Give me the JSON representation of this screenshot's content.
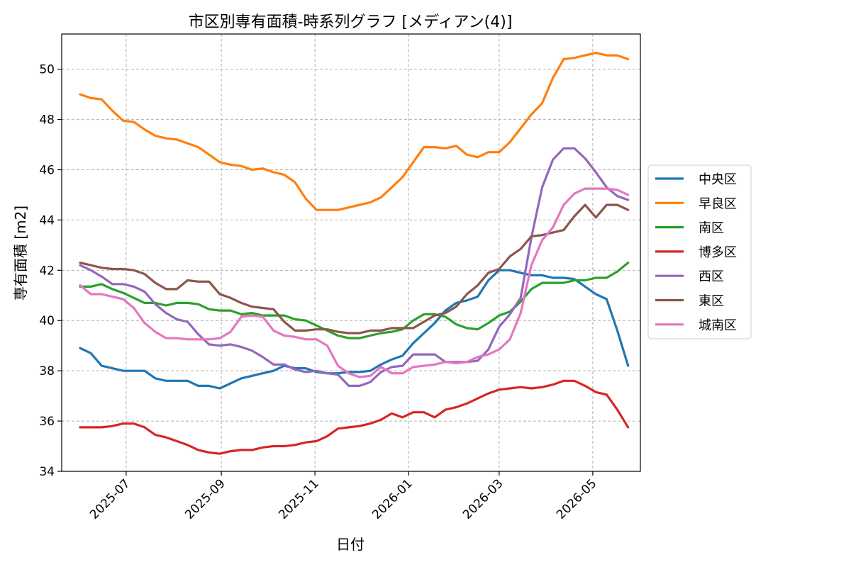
{
  "chart_data": {
    "type": "line",
    "title": "市区別専有面積-時系列グラフ [メディアン(4)]",
    "xlabel": "日付",
    "ylabel": "専有面積 [m2]",
    "x_tick_labels": [
      "2025-07",
      "2025-09",
      "2025-11",
      "2026-01",
      "2026-03",
      "2026-05"
    ],
    "y_tick_labels": [
      "34",
      "36",
      "38",
      "40",
      "42",
      "44",
      "46",
      "48",
      "50"
    ],
    "ylim": [
      34,
      51.4
    ],
    "xlim": [
      "2025-05-20",
      "2026-06-01"
    ],
    "grid": true,
    "legend_position": "right",
    "x": [
      "2025-06-01",
      "2025-06-08",
      "2025-06-15",
      "2025-06-22",
      "2025-06-29",
      "2025-07-06",
      "2025-07-13",
      "2025-07-20",
      "2025-07-27",
      "2025-08-03",
      "2025-08-10",
      "2025-08-17",
      "2025-08-24",
      "2025-08-31",
      "2025-09-07",
      "2025-09-14",
      "2025-09-21",
      "2025-09-28",
      "2025-10-05",
      "2025-10-12",
      "2025-10-19",
      "2025-10-26",
      "2025-11-02",
      "2025-11-09",
      "2025-11-16",
      "2025-11-23",
      "2025-11-30",
      "2025-12-07",
      "2025-12-14",
      "2025-12-21",
      "2025-12-28",
      "2026-01-04",
      "2026-01-11",
      "2026-01-18",
      "2026-01-25",
      "2026-02-01",
      "2026-02-08",
      "2026-02-15",
      "2026-02-22",
      "2026-03-01",
      "2026-03-08",
      "2026-03-15",
      "2026-03-22",
      "2026-03-29",
      "2026-04-05",
      "2026-04-12",
      "2026-04-19",
      "2026-04-26",
      "2026-05-03",
      "2026-05-10",
      "2026-05-17",
      "2026-05-24"
    ],
    "series": [
      {
        "name": "中央区",
        "color": "#1f77b4",
        "values": [
          38.9,
          38.7,
          38.2,
          38.1,
          38.0,
          38.0,
          38.0,
          37.7,
          37.6,
          37.6,
          37.6,
          37.4,
          37.4,
          37.3,
          37.5,
          37.7,
          37.8,
          37.9,
          38.0,
          38.2,
          38.1,
          38.1,
          37.95,
          37.9,
          37.9,
          37.95,
          37.95,
          38.0,
          38.25,
          38.45,
          38.6,
          39.1,
          39.5,
          39.9,
          40.4,
          40.7,
          40.8,
          40.95,
          41.6,
          42.0,
          42.0,
          41.9,
          41.8,
          41.8,
          41.7,
          41.7,
          41.65,
          41.35,
          41.05,
          40.85,
          39.6,
          38.2
        ]
      },
      {
        "name": "早良区",
        "color": "#ff7f0e",
        "values": [
          49.0,
          48.85,
          48.8,
          48.35,
          47.95,
          47.9,
          47.6,
          47.35,
          47.25,
          47.2,
          47.05,
          46.9,
          46.6,
          46.3,
          46.2,
          46.15,
          46.0,
          46.05,
          45.9,
          45.8,
          45.5,
          44.85,
          44.4,
          44.4,
          44.4,
          44.5,
          44.6,
          44.7,
          44.9,
          45.3,
          45.7,
          46.3,
          46.9,
          46.9,
          46.85,
          46.95,
          46.6,
          46.5,
          46.7,
          46.7,
          47.1,
          47.65,
          48.2,
          48.65,
          49.65,
          50.4,
          50.45,
          50.55,
          50.65,
          50.55,
          50.55,
          50.4
        ]
      },
      {
        "name": "南区",
        "color": "#2ca02c",
        "values": [
          41.35,
          41.35,
          41.45,
          41.25,
          41.1,
          40.9,
          40.7,
          40.7,
          40.6,
          40.7,
          40.7,
          40.65,
          40.45,
          40.4,
          40.4,
          40.25,
          40.3,
          40.2,
          40.2,
          40.2,
          40.05,
          40.0,
          39.8,
          39.6,
          39.4,
          39.3,
          39.3,
          39.4,
          39.5,
          39.55,
          39.65,
          40.0,
          40.25,
          40.25,
          40.15,
          39.85,
          39.7,
          39.65,
          39.9,
          40.2,
          40.35,
          40.75,
          41.25,
          41.5,
          41.5,
          41.5,
          41.6,
          41.6,
          41.7,
          41.7,
          41.95,
          42.3
        ]
      },
      {
        "name": "博多区",
        "color": "#d62728",
        "values": [
          35.75,
          35.75,
          35.75,
          35.8,
          35.9,
          35.9,
          35.75,
          35.45,
          35.35,
          35.2,
          35.05,
          34.85,
          34.75,
          34.7,
          34.8,
          34.85,
          34.85,
          34.95,
          35.0,
          35.0,
          35.05,
          35.15,
          35.2,
          35.4,
          35.7,
          35.75,
          35.8,
          35.9,
          36.05,
          36.3,
          36.15,
          36.35,
          36.35,
          36.15,
          36.45,
          36.55,
          36.7,
          36.9,
          37.1,
          37.25,
          37.3,
          37.35,
          37.3,
          37.35,
          37.45,
          37.6,
          37.6,
          37.4,
          37.15,
          37.05,
          36.45,
          35.75
        ]
      },
      {
        "name": "西区",
        "color": "#9467bd",
        "values": [
          42.2,
          42.0,
          41.75,
          41.45,
          41.45,
          41.35,
          41.15,
          40.65,
          40.3,
          40.05,
          39.95,
          39.45,
          39.05,
          39.0,
          39.05,
          38.95,
          38.8,
          38.55,
          38.25,
          38.25,
          38.05,
          37.95,
          38.0,
          37.9,
          37.85,
          37.4,
          37.4,
          37.55,
          37.95,
          38.15,
          38.2,
          38.65,
          38.65,
          38.65,
          38.35,
          38.35,
          38.35,
          38.4,
          38.85,
          39.75,
          40.25,
          40.9,
          43.3,
          45.3,
          46.4,
          46.85,
          46.85,
          46.45,
          45.9,
          45.3,
          44.95,
          44.8
        ]
      },
      {
        "name": "東区",
        "color": "#8c564b",
        "values": [
          42.3,
          42.2,
          42.1,
          42.05,
          42.05,
          42.0,
          41.85,
          41.5,
          41.25,
          41.25,
          41.6,
          41.55,
          41.55,
          41.05,
          40.9,
          40.7,
          40.55,
          40.5,
          40.45,
          39.95,
          39.6,
          39.6,
          39.65,
          39.65,
          39.55,
          39.5,
          39.5,
          39.6,
          39.6,
          39.7,
          39.7,
          39.7,
          39.95,
          40.2,
          40.3,
          40.55,
          41.05,
          41.4,
          41.9,
          42.05,
          42.55,
          42.85,
          43.35,
          43.4,
          43.5,
          43.6,
          44.15,
          44.6,
          44.1,
          44.6,
          44.6,
          44.4
        ]
      },
      {
        "name": "城南区",
        "color": "#e377c2",
        "values": [
          41.4,
          41.05,
          41.05,
          40.95,
          40.85,
          40.5,
          39.9,
          39.55,
          39.3,
          39.3,
          39.25,
          39.25,
          39.25,
          39.3,
          39.55,
          40.15,
          40.2,
          40.15,
          39.6,
          39.4,
          39.35,
          39.25,
          39.25,
          39.0,
          38.2,
          37.9,
          37.75,
          37.8,
          38.15,
          37.9,
          37.9,
          38.15,
          38.2,
          38.25,
          38.35,
          38.3,
          38.35,
          38.55,
          38.65,
          38.85,
          39.25,
          40.3,
          42.2,
          43.2,
          43.7,
          44.6,
          45.05,
          45.25,
          45.25,
          45.25,
          45.2,
          45.0
        ]
      }
    ]
  }
}
